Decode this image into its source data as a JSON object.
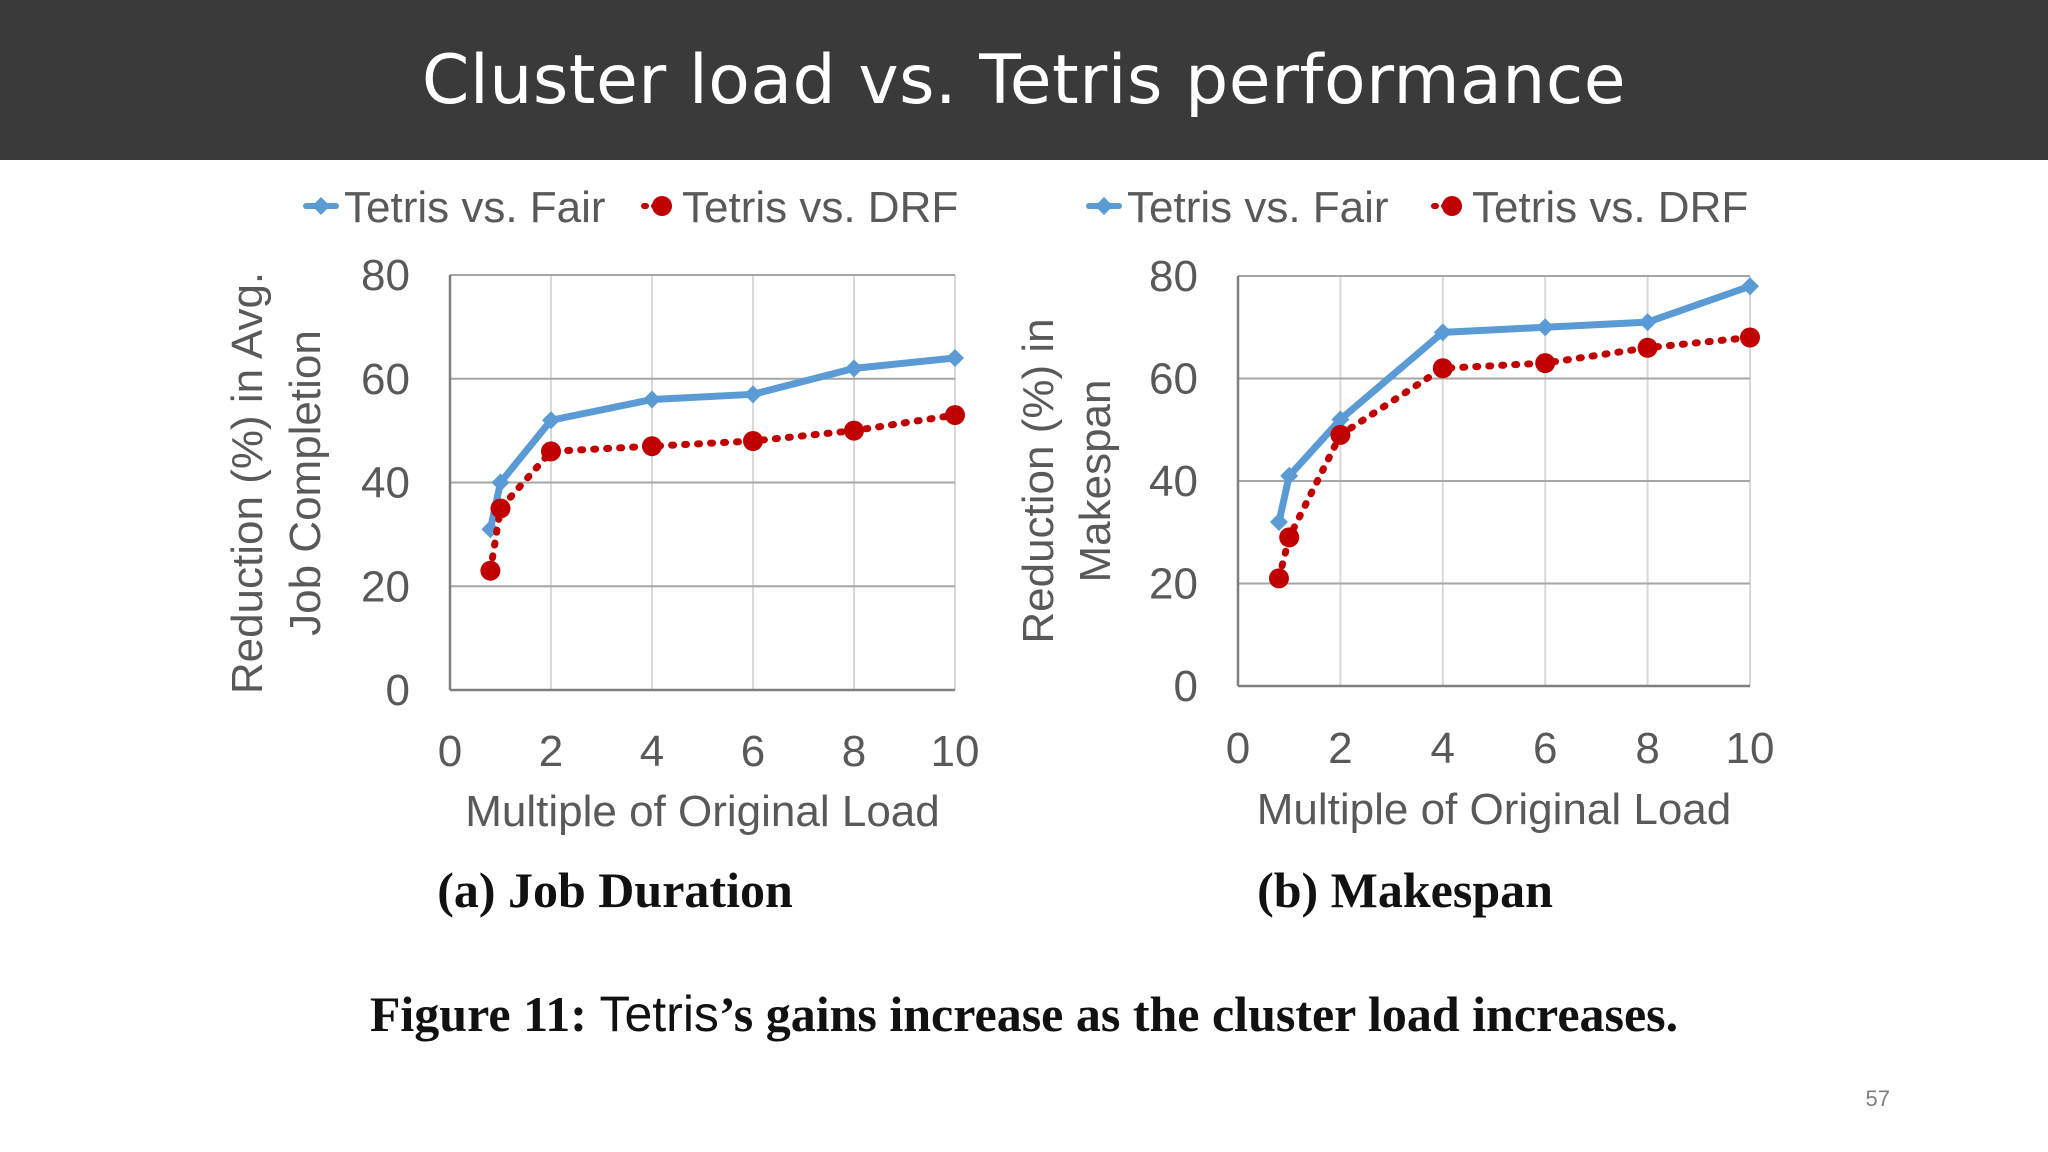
{
  "slide": {
    "title": "Cluster load vs. Tetris performance",
    "page_number": "57",
    "caption": {
      "prefix": "Figure 11: ",
      "word": "Tetris",
      "suffix": "’s gains increase as the cluster load increases."
    }
  },
  "colors": {
    "fair": "#5b9bd5",
    "drf": "#c00000",
    "grid": "#bfbfbf",
    "text": "#595959"
  },
  "chart_data": [
    {
      "type": "line",
      "title": "",
      "subcaption": "(a) Job Duration",
      "xlabel": "Multiple of Original Load",
      "ylabel_lines": [
        "Reduction (%) in Avg.",
        "Job Completion"
      ],
      "xlim": [
        0,
        10
      ],
      "ylim": [
        0,
        80
      ],
      "xticks": [
        0,
        2,
        4,
        6,
        8,
        10
      ],
      "yticks": [
        0,
        20,
        40,
        60,
        80
      ],
      "grid": true,
      "legend_position": "top",
      "series": [
        {
          "name": "Tetris vs. Fair",
          "style": "solid-diamond",
          "x": [
            0.8,
            1,
            2,
            4,
            6,
            8,
            10
          ],
          "y": [
            31,
            40,
            52,
            56,
            57,
            62,
            64
          ]
        },
        {
          "name": "Tetris vs. DRF",
          "style": "dotted-circle",
          "x": [
            0.8,
            1,
            2,
            4,
            6,
            8,
            10
          ],
          "y": [
            23,
            35,
            46,
            47,
            48,
            50,
            53
          ]
        }
      ]
    },
    {
      "type": "line",
      "title": "",
      "subcaption": "(b) Makespan",
      "xlabel": "Multiple of Original Load",
      "ylabel_lines": [
        "Reduction (%) in",
        "Makespan"
      ],
      "xlim": [
        0,
        10
      ],
      "ylim": [
        0,
        80
      ],
      "xticks": [
        0,
        2,
        4,
        6,
        8,
        10
      ],
      "yticks": [
        0,
        20,
        40,
        60,
        80
      ],
      "grid": true,
      "legend_position": "top",
      "series": [
        {
          "name": "Tetris vs. Fair",
          "style": "solid-diamond",
          "x": [
            0.8,
            1,
            2,
            4,
            6,
            8,
            10
          ],
          "y": [
            32,
            41,
            52,
            69,
            70,
            71,
            78
          ]
        },
        {
          "name": "Tetris vs. DRF",
          "style": "dotted-circle",
          "x": [
            0.8,
            1,
            2,
            4,
            6,
            8,
            10
          ],
          "y": [
            21,
            29,
            49,
            62,
            63,
            66,
            68
          ]
        }
      ]
    }
  ]
}
